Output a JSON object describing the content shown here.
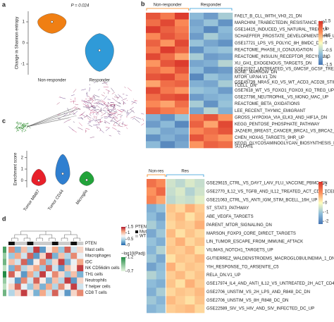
{
  "panel_labels": [
    "a",
    "b",
    "c",
    "d"
  ],
  "chart_data": [
    {
      "type": "violin",
      "ylabel": "Change in Shannon entropy",
      "annotation": "P = 0.024",
      "categories": [
        "Non-responder",
        "Responder"
      ],
      "colors": [
        "#f07f13",
        "#2f9ad8"
      ],
      "min": [
        0.45,
        -1.35
      ],
      "median": [
        1.0,
        -0.35
      ],
      "max": [
        1.4,
        0.45
      ],
      "ylim": [
        -1.5,
        1.5
      ],
      "yticks": [
        -1,
        0,
        1
      ]
    },
    {
      "type": "heatmap",
      "groups": [
        {
          "name": "Non-responder",
          "color": "#f07f13",
          "values": [
            [
              1.2,
              0.9,
              1.4
            ],
            [
              1.0,
              1.3,
              0.8
            ],
            [
              1.4,
              1.1,
              0.9
            ],
            [
              0.8,
              1.2,
              1.0
            ],
            [
              1.1,
              0.7,
              1.3
            ],
            [
              0.9,
              1.4,
              1.1
            ],
            [
              1.3,
              1.0,
              0.6
            ],
            [
              0.7,
              1.2,
              1.4
            ],
            [
              1.0,
              0.8,
              1.2
            ],
            [
              1.2,
              1.3,
              0.9
            ],
            [
              0.6,
              1.0,
              1.1
            ],
            [
              1.3,
              0.9,
              0.7
            ],
            [
              1.0,
              1.2,
              1.3
            ],
            [
              0.8,
              0.6,
              1.0
            ],
            [
              1.1,
              0.9,
              0.8
            ],
            [
              -0.9,
              -1.2,
              -0.7
            ],
            [
              -1.1,
              -0.8,
              -1.3
            ],
            [
              -0.7,
              -1.0,
              -0.9
            ],
            [
              -1.2,
              -0.9,
              -1.1
            ],
            [
              -0.8,
              -1.3,
              -1.0
            ]
          ]
        },
        {
          "name": "Responder",
          "color": "#2f9ad8",
          "values": [
            [
              -0.8,
              -1.1,
              -0.6
            ],
            [
              -1.0,
              -0.7,
              -1.2
            ],
            [
              -0.9,
              -1.3,
              -0.8
            ],
            [
              -1.1,
              -0.6,
              -0.9
            ],
            [
              -0.7,
              -1.0,
              -1.2
            ],
            [
              -1.2,
              -0.8,
              -0.7
            ],
            [
              -0.6,
              -1.1,
              -1.0
            ],
            [
              -1.0,
              -0.9,
              -0.5
            ],
            [
              -0.8,
              -1.2,
              -1.1
            ],
            [
              -1.3,
              -0.7,
              -0.9
            ],
            [
              -0.9,
              -1.0,
              -0.6
            ],
            [
              -0.7,
              -0.8,
              -1.1
            ],
            [
              -1.1,
              -0.9,
              -0.8
            ],
            [
              -0.6,
              -1.2,
              -0.7
            ],
            [
              -1.0,
              -0.5,
              -0.9
            ],
            [
              0.9,
              1.2,
              0.7
            ],
            [
              1.1,
              0.6,
              1.3
            ],
            [
              0.8,
              1.0,
              1.2
            ],
            [
              1.2,
              0.9,
              0.7
            ],
            [
              0.7,
              1.1,
              1.0
            ]
          ]
        }
      ],
      "row_labels": [
        "FAELT_B_CLL_WITH_VH3_21_DN",
        "MARCHINI_TRABECTEDIN_RESISTANCE_UP",
        "GSE14415_INDUCED_VS_NATURAL_TREG_UP",
        "SCHAEFFER_PROSTATE_DEVELOPMENT_6HR_UP",
        "GSE17721_LPS_VS_POLYIC_8H_BMDC_DN",
        "REACTOME_PHASE_II_CONJUGATION",
        "REACTOME_INSULIN_RECEPTOR_RECYCLING",
        "XU_GH1_EXOGENOUS_TARGETS_DN",
        [
          "GSE21927_UNTREATED_VS_GMCSF_GCSF_TREATED_",
          "BONE_MARROW_DN"
        ],
        "MTOR_UP.N4.V1_DN",
        [
          "GSE45739_NRAS_KO_VS_WT_ACD3_ACD28_STIM_CD4_",
          "TCELL_DN"
        ],
        "GSE7618_WT_VS_FOXO1_FOXO3_KO_TREG_UP",
        "GSE27786_NEUTROPHIL_VS_MONO_MAC_UP",
        "REACTOME_BETA_OXIDATIONS",
        "LEE_RECENT_THYMIC_EMIGRANT",
        "GROSS_HYPOXIA_VIA_ELK3_AND_HIF1A_DN",
        "KEGG_PENTOSE_PHOSPHATE_PATHWAY",
        "JAZAERI_BREAST_CANCER_BRCA1_VS_BRCA2_UP",
        "CHEN_HOXA5_TARGETS_9HR_UP",
        [
          "KEGG_GLYCOSAMINOGLYCAN_BIOSYNTHESIS_HEPARAN_",
          "SULFATE"
        ]
      ],
      "colors": [
        "#4575b4",
        "#91bfdb",
        "#ffffbf",
        "#fc8d59",
        "#d73027"
      ],
      "zlim": [
        -1.5,
        1.5
      ],
      "zticks": [
        1.5,
        1,
        0.5,
        0,
        -0.5,
        -1,
        -1.5
      ]
    },
    {
      "type": "violin",
      "ylabel": "Enrichment score",
      "categories": [
        "Tumor MM87",
        "Tumor CD44",
        "Microglia"
      ],
      "colors": [
        "#e8202a",
        "#2f7fd0",
        "#22a33a"
      ],
      "min": [
        -0.45,
        -0.35,
        -0.45
      ],
      "median": [
        0.0,
        0.6,
        0.05
      ],
      "max": [
        1.0,
        2.3,
        0.8
      ],
      "ylim": [
        -0.6,
        2.6
      ],
      "yticks": [
        0,
        1,
        2
      ]
    },
    {
      "type": "heatmap",
      "groups": [
        {
          "name": "Non-res",
          "color": "#f07f13",
          "values": [
            [
              1.5,
              1.2
            ],
            [
              1.1,
              1.6
            ],
            [
              1.3,
              0.9
            ],
            [
              -1.4,
              -1.1
            ],
            [
              -1.2,
              -1.6
            ],
            [
              -0.9,
              -1.3
            ],
            [
              -1.5,
              -1.0
            ],
            [
              -1.1,
              -1.4
            ],
            [
              -1.3,
              -0.8
            ],
            [
              -1.0,
              -1.5
            ],
            [
              -1.6,
              -1.2
            ],
            [
              -0.8,
              -1.1
            ],
            [
              -1.2,
              -1.4
            ],
            [
              -1.4,
              -0.9
            ],
            [
              -1.0,
              -1.3
            ],
            [
              -1.3,
              -1.1
            ]
          ]
        },
        {
          "name": "Res",
          "color": "#2f9ad8",
          "values": [
            [
              -0.5,
              -0.7,
              -0.4,
              -0.6
            ],
            [
              -0.6,
              -0.4,
              -0.8,
              -0.5
            ],
            [
              -0.7,
              -0.5,
              -0.6,
              -0.3
            ],
            [
              0.6,
              0.4,
              0.8,
              0.5
            ],
            [
              0.5,
              0.7,
              0.3,
              0.6
            ],
            [
              0.4,
              0.6,
              0.5,
              0.8
            ],
            [
              0.7,
              0.3,
              0.6,
              0.4
            ],
            [
              0.5,
              0.8,
              0.4,
              0.6
            ],
            [
              0.6,
              0.5,
              0.7,
              0.3
            ],
            [
              0.3,
              0.6,
              0.5,
              0.7
            ],
            [
              0.8,
              0.4,
              0.6,
              0.5
            ],
            [
              0.5,
              0.7,
              0.4,
              0.6
            ],
            [
              0.6,
              0.3,
              0.8,
              0.5
            ],
            [
              0.4,
              0.6,
              0.5,
              0.7
            ],
            [
              0.7,
              0.5,
              0.3,
              0.6
            ],
            [
              0.5,
              0.6,
              0.7,
              0.4
            ]
          ]
        }
      ],
      "row_labels": [
        "GSE29615_CTRL_VS_DAY7_LAIV_FLU_VACCINE_PBMC_DN",
        "GSE2770_IL12_VS_TGFB_AND_IL12_TREATED_ACT_CD4_TCELL_48H_DN",
        "GSE21063_CTRL_VS_ANTI_IGM_STIM_BCELL_16H_UP",
        "ST_STAT3_PATHWAY",
        "ABE_VEGFA_TARGETS",
        "PARENT_MTOR_SIGNALING_DN",
        "MARSON_FOXP3_CORE_DIRECT_TARGETS",
        "LIN_TUMOR_ESCAPE_FROM_IMMUNE_ATTACK",
        "VILIMAS_NOTCH1_TARGETS_UP",
        "GUTIERREZ_WALDENSTROEMS_MACROGLOBULINEMIA_1_DN",
        "YIH_RESPONSE_TO_ARSENITE_C5",
        "RELA_DN.V1_UP",
        "GSE17974_IL4_AND_ANTI_IL12_VS_UNTREATED_2H_ACT_CD4_TCELL_UP",
        "GSE2706_UNSTIM_VS_2H_LPS_AND_R848_DC_DN",
        "GSE2706_UNSTIM_VS_8H_R848_DC_DN",
        "GSE22589_SIV_VS_HIV_AND_SIV_INFECTED_DC_UP"
      ],
      "colors": [
        "#4575b4",
        "#91bfdb",
        "#ffffbf",
        "#fc8d59",
        "#d73027"
      ],
      "zlim": [
        -2.3,
        2.3
      ],
      "zticks": [
        2,
        1,
        0,
        -1,
        -2
      ]
    },
    {
      "type": "heatmap",
      "values": [
        [
          1.2,
          0.3,
          1.0,
          0.5,
          1.4,
          0.2,
          0.8,
          1.1,
          0.4,
          1.3,
          0.6,
          0.9
        ],
        [
          0.4,
          1.1,
          0.6,
          1.3,
          0.2,
          0.9,
          1.4,
          0.3,
          1.0,
          0.5,
          1.2,
          0.7
        ],
        [
          1.0,
          0.6,
          1.3,
          0.2,
          0.8,
          1.2,
          0.4,
          0.9,
          1.4,
          0.3,
          0.7,
          1.1
        ],
        [
          0.3,
          1.2,
          0.5,
          0.9,
          1.1,
          0.4,
          1.3,
          0.6,
          0.2,
          1.0,
          0.8,
          1.4
        ],
        [
          1.3,
          0.8,
          0.2,
          1.1,
          0.5,
          1.4,
          0.7,
          1.2,
          0.9,
          0.4,
          1.0,
          0.3
        ],
        [
          0.7,
          0.2,
          1.2,
          0.6,
          1.3,
          0.8,
          0.3,
          1.0,
          0.5,
          1.4,
          0.2,
          0.9
        ],
        [
          0.9,
          1.3,
          0.7,
          0.4,
          1.0,
          0.3,
          1.1,
          0.5,
          1.2,
          0.8,
          1.4,
          0.6
        ],
        [
          0.5,
          0.9,
          1.4,
          0.8,
          0.3,
          1.1,
          0.6,
          1.3,
          0.7,
          0.2,
          0.9,
          1.2
        ]
      ],
      "row_labels": [
        "Mast cells",
        "Macrophages",
        "iDC",
        "NK CD56dim cells",
        "TH1 cells",
        "Neutrophils",
        "T helper cells",
        "CD8 T cells"
      ],
      "colors": [
        "#2166ac",
        "#92c5de",
        "#f7f7f7",
        "#f4a582",
        "#b2182b"
      ],
      "zlim": [
        0,
        1.5
      ],
      "zticks": [
        1.5,
        1,
        0.5,
        0
      ],
      "annotation_label": "PTEN",
      "pten": [
        0,
        1,
        1,
        0,
        1,
        1,
        1,
        0,
        1,
        1,
        0,
        1
      ],
      "pten_legend": {
        "title": "PTEN",
        "items": [
          {
            "name": "Mut",
            "color": "#111111"
          },
          {
            "name": "WT",
            "color": "#cccccc"
          }
        ]
      },
      "padj": {
        "title": "−log10(Padj)",
        "colors": [
          "#e5f5e0",
          "#238b45"
        ],
        "lim": [
          0.7,
          1.2
        ],
        "ticks": [
          1.2,
          0.7
        ],
        "values": [
          1.1,
          0.9,
          1.0,
          0.8,
          1.2,
          0.9,
          0.8,
          1.0
        ]
      }
    }
  ]
}
